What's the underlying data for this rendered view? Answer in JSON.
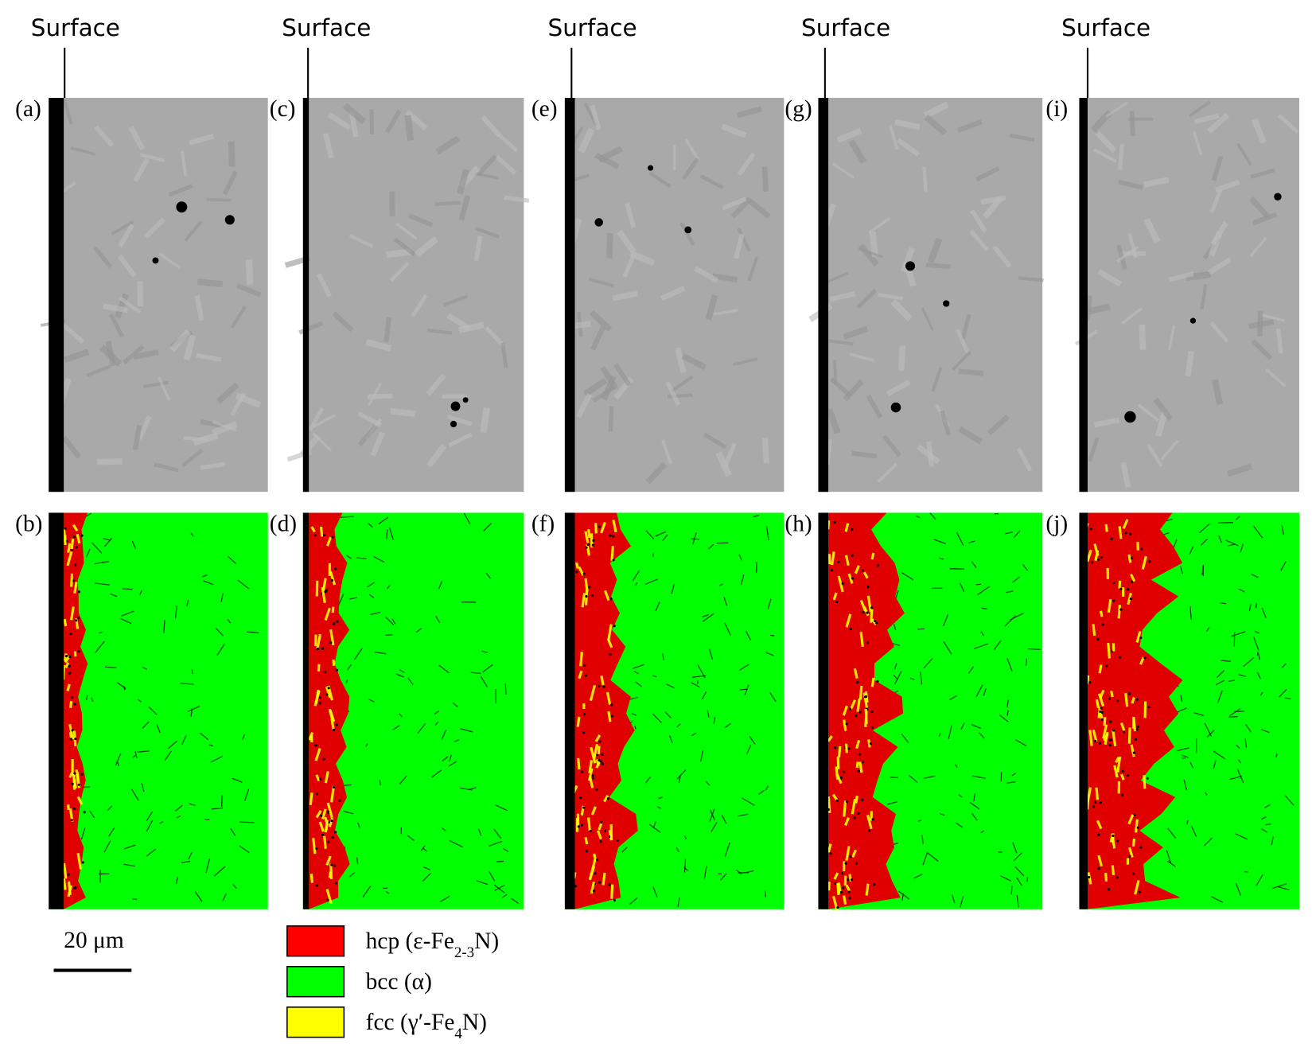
{
  "columns": [
    {
      "surface": "Surface",
      "top": "(a)",
      "bottom": "(b)"
    },
    {
      "surface": "Surface",
      "top": "(c)",
      "bottom": "(d)"
    },
    {
      "surface": "Surface",
      "top": "(e)",
      "bottom": "(f)"
    },
    {
      "surface": "Surface",
      "top": "(g)",
      "bottom": "(h)"
    },
    {
      "surface": "Surface",
      "top": "(i)",
      "bottom": "(j)"
    }
  ],
  "scale_bar": "20 μm",
  "legend": [
    {
      "parts": [
        "hcp (ε-Fe",
        "2-3",
        "N)"
      ],
      "color": "#ff0000"
    },
    {
      "parts": [
        "bcc (α)"
      ],
      "color": "#00ff00"
    },
    {
      "parts": [
        "fcc (γ′-Fe",
        "4",
        "N)"
      ],
      "color": "#ffff00"
    }
  ]
}
